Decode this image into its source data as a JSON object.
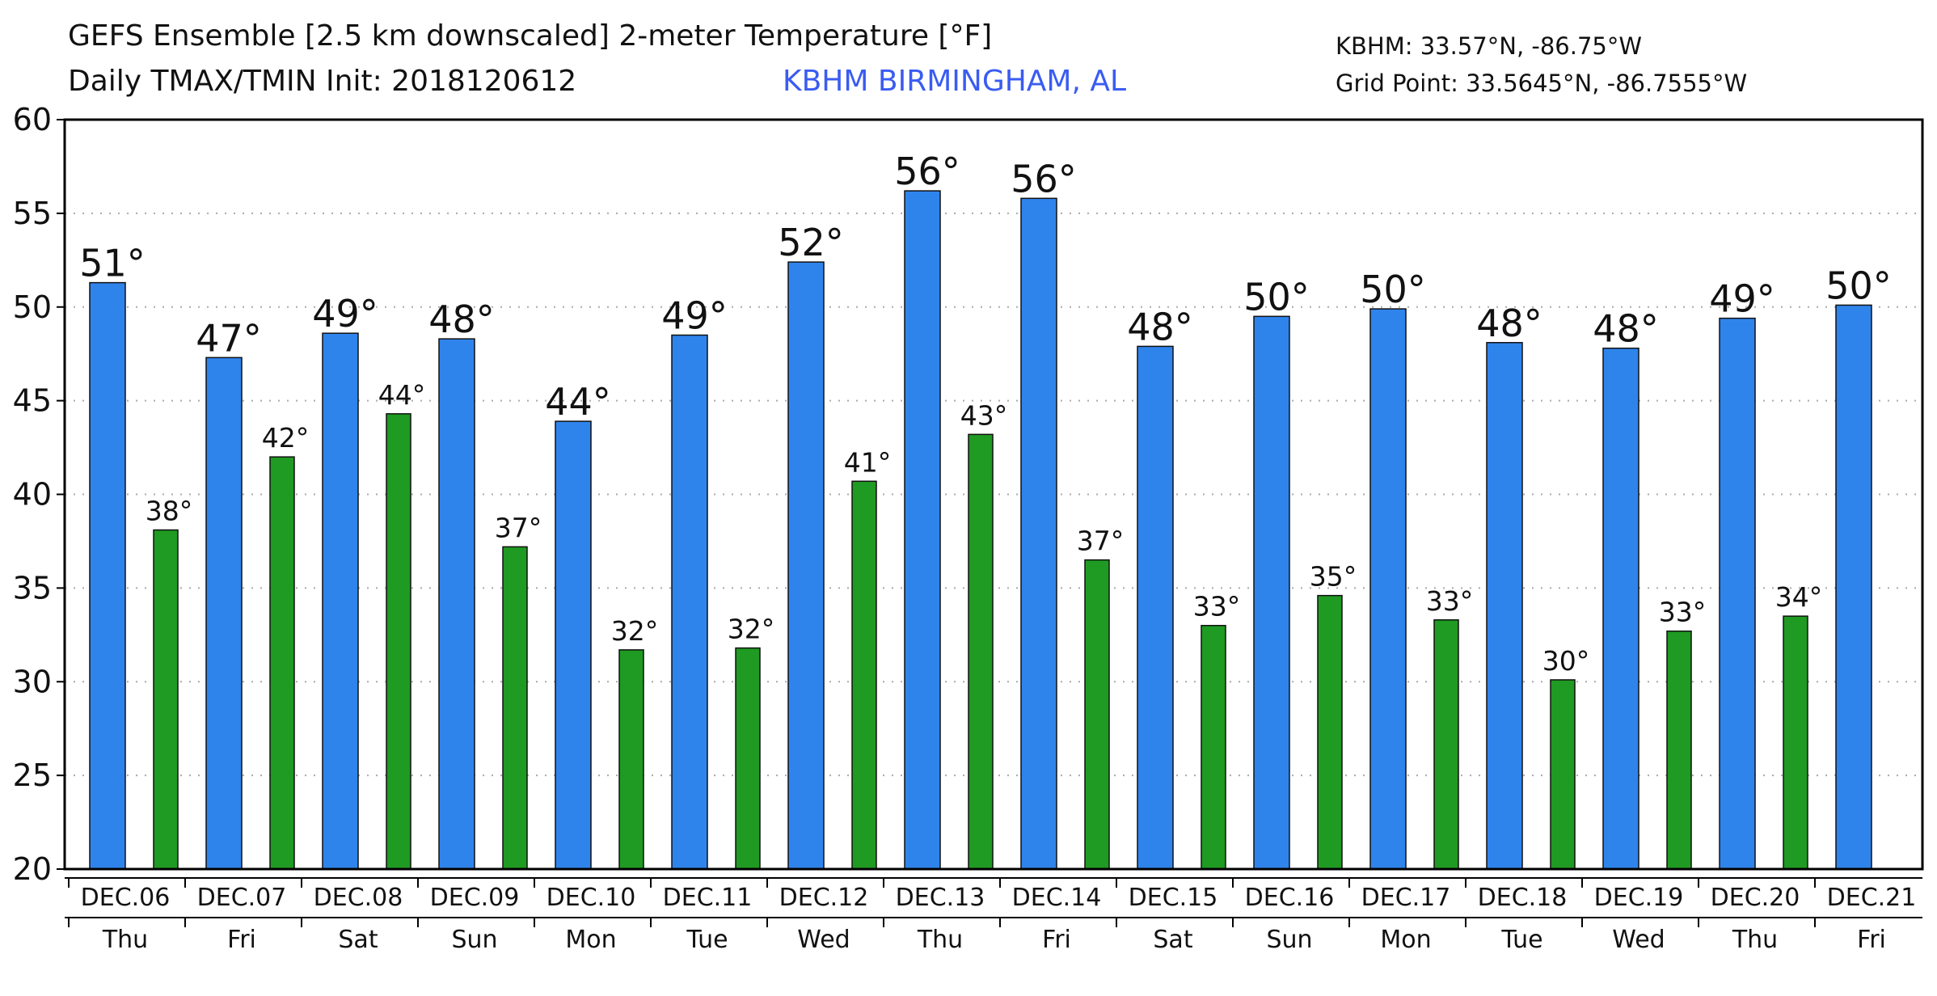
{
  "header": {
    "title_line1": "GEFS Ensemble [2.5 km downscaled] 2-meter Temperature [°F]",
    "title_line2": "Daily TMAX/TMIN Init: 2018120612",
    "station": "KBHM BIRMINGHAM, AL",
    "station_coords": "KBHM: 33.57°N, -86.75°W",
    "grid_point": "Grid Point: 33.5645°N, -86.7555°W"
  },
  "colors": {
    "tmax": "#2f84ec",
    "tmin": "#1f9a22",
    "station": "#3a5cf2",
    "grid": "#aaaaaa"
  },
  "chart_data": {
    "type": "bar",
    "title": "GEFS Ensemble [2.5 km downscaled] 2-meter Temperature [°F]",
    "subtitle": "Daily TMAX/TMIN Init: 2018120612",
    "xlabel": "",
    "ylabel": "",
    "ylim": [
      20,
      60
    ],
    "yticks": [
      20,
      25,
      30,
      35,
      40,
      45,
      50,
      55,
      60
    ],
    "grid": true,
    "legend": "none",
    "categories": [
      "DEC.06",
      "DEC.07",
      "DEC.08",
      "DEC.09",
      "DEC.10",
      "DEC.11",
      "DEC.12",
      "DEC.13",
      "DEC.14",
      "DEC.15",
      "DEC.16",
      "DEC.17",
      "DEC.18",
      "DEC.19",
      "DEC.20",
      "DEC.21"
    ],
    "weekdays": [
      "Thu",
      "Fri",
      "Sat",
      "Sun",
      "Mon",
      "Tue",
      "Wed",
      "Thu",
      "Fri",
      "Sat",
      "Sun",
      "Mon",
      "Tue",
      "Wed",
      "Thu",
      "Fri"
    ],
    "tmax": {
      "values": [
        51.3,
        47.3,
        48.6,
        48.3,
        43.9,
        48.5,
        52.4,
        56.2,
        55.8,
        47.9,
        49.5,
        49.9,
        48.1,
        47.8,
        49.4,
        50.1
      ],
      "labels": [
        "51°",
        "47°",
        "49°",
        "48°",
        "44°",
        "49°",
        "52°",
        "56°",
        "56°",
        "48°",
        "50°",
        "50°",
        "48°",
        "48°",
        "49°",
        "50°"
      ]
    },
    "tmin": {
      "values": [
        38.1,
        42.0,
        44.3,
        37.2,
        31.7,
        31.8,
        40.7,
        43.2,
        36.5,
        33.0,
        34.6,
        33.3,
        30.1,
        32.7,
        33.5
      ],
      "labels": [
        "38°",
        "42°",
        "44°",
        "37°",
        "32°",
        "32°",
        "41°",
        "43°",
        "37°",
        "33°",
        "35°",
        "33°",
        "30°",
        "33°",
        "34°"
      ]
    }
  }
}
